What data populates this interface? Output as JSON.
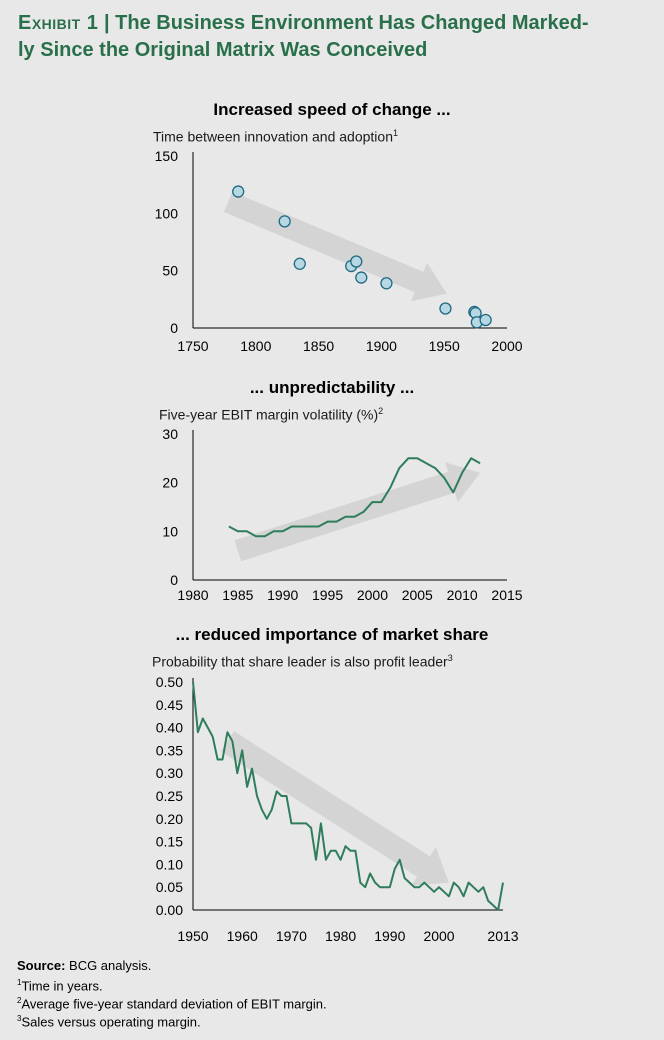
{
  "header": {
    "exhibit_label": "Exhibit 1",
    "separator": " | ",
    "title_line1": "The Business Environment Has Changed Marked-",
    "title_line2": "ly Since the Original Matrix Was Conceived"
  },
  "colors": {
    "accent": "#29704a",
    "line": "#2e7d5b",
    "marker_fill": "#b7d7e3",
    "marker_stroke": "#1f6a83",
    "arrow": "#d4d4d4",
    "background": "#e8e8e8"
  },
  "chart_data": [
    {
      "type": "scatter",
      "title": "Increased speed of change ...",
      "ylabel": "Time between innovation and adoption",
      "ylabel_note": "1",
      "xlim": [
        1750,
        2000
      ],
      "ylim": [
        0,
        150
      ],
      "xticks": [
        1750,
        1800,
        1850,
        1900,
        1950,
        2000
      ],
      "yticks": [
        0,
        50,
        100,
        150
      ],
      "points": [
        {
          "x": 1786,
          "y": 119
        },
        {
          "x": 1823,
          "y": 93
        },
        {
          "x": 1835,
          "y": 56
        },
        {
          "x": 1876,
          "y": 54
        },
        {
          "x": 1880,
          "y": 58
        },
        {
          "x": 1884,
          "y": 44
        },
        {
          "x": 1904,
          "y": 39
        },
        {
          "x": 1951,
          "y": 17
        },
        {
          "x": 1974,
          "y": 14
        },
        {
          "x": 1975,
          "y": 13
        },
        {
          "x": 1976,
          "y": 5
        },
        {
          "x": 1983,
          "y": 7
        }
      ],
      "trend_arrow": {
        "from": [
          1778,
          110
        ],
        "to": [
          1952,
          30
        ]
      }
    },
    {
      "type": "line",
      "title": "... unpredictability ...",
      "ylabel": "Five-year EBIT margin volatility (%)",
      "ylabel_note": "2",
      "xlim": [
        1980,
        2015
      ],
      "ylim": [
        0,
        30
      ],
      "xticks": [
        1980,
        1985,
        1990,
        1995,
        2000,
        2005,
        2010,
        2015
      ],
      "yticks": [
        0,
        10,
        20,
        30
      ],
      "x": [
        1984,
        1985,
        1986,
        1987,
        1988,
        1989,
        1990,
        1991,
        1992,
        1993,
        1994,
        1995,
        1996,
        1997,
        1998,
        1999,
        2000,
        2001,
        2002,
        2003,
        2004,
        2005,
        2006,
        2007,
        2008,
        2009,
        2010,
        2011,
        2012
      ],
      "values": [
        11,
        10,
        10,
        9,
        9,
        10,
        10,
        11,
        11,
        11,
        11,
        12,
        12,
        13,
        13,
        14,
        16,
        16,
        19,
        23,
        25,
        25,
        24,
        23,
        21,
        18,
        22,
        25,
        24
      ],
      "trend_arrow": {
        "from": [
          1985,
          6
        ],
        "to": [
          2012,
          22
        ]
      }
    },
    {
      "type": "line",
      "title": "... reduced importance of market share",
      "ylabel": "Probability that share leader is also profit leader",
      "ylabel_note": "3",
      "xlim": [
        1950,
        2013
      ],
      "ylim": [
        0,
        0.5
      ],
      "xticks": [
        1950,
        1960,
        1970,
        1980,
        1990,
        2000,
        2013
      ],
      "xtick_labels": [
        "1950",
        "1960",
        "1970",
        "1980",
        "1990",
        "2000",
        "2013"
      ],
      "yticks": [
        0,
        0.05,
        0.1,
        0.15,
        0.2,
        0.25,
        0.3,
        0.35,
        0.4,
        0.45,
        0.5
      ],
      "ytick_labels": [
        "0.00",
        "0.05",
        "0.10",
        "0.15",
        "0.20",
        "0.25",
        "0.30",
        "0.35",
        "0.40",
        "0.45",
        "0.50"
      ],
      "x": [
        1950,
        1951,
        1952,
        1953,
        1954,
        1955,
        1956,
        1957,
        1958,
        1959,
        1960,
        1961,
        1962,
        1963,
        1964,
        1965,
        1966,
        1967,
        1968,
        1969,
        1970,
        1971,
        1972,
        1973,
        1974,
        1975,
        1976,
        1977,
        1978,
        1979,
        1980,
        1981,
        1982,
        1983,
        1984,
        1985,
        1986,
        1987,
        1988,
        1989,
        1990,
        1991,
        1992,
        1993,
        1994,
        1995,
        1996,
        1997,
        1998,
        1999,
        2000,
        2001,
        2002,
        2003,
        2004,
        2005,
        2006,
        2007,
        2008,
        2009,
        2010,
        2011,
        2012,
        2013
      ],
      "values": [
        0.5,
        0.39,
        0.42,
        0.4,
        0.38,
        0.33,
        0.33,
        0.39,
        0.37,
        0.3,
        0.35,
        0.27,
        0.31,
        0.25,
        0.22,
        0.2,
        0.22,
        0.26,
        0.25,
        0.25,
        0.19,
        0.19,
        0.19,
        0.19,
        0.18,
        0.11,
        0.19,
        0.11,
        0.13,
        0.13,
        0.11,
        0.14,
        0.13,
        0.13,
        0.06,
        0.05,
        0.08,
        0.06,
        0.05,
        0.05,
        0.05,
        0.09,
        0.11,
        0.07,
        0.06,
        0.05,
        0.05,
        0.06,
        0.05,
        0.04,
        0.05,
        0.04,
        0.03,
        0.06,
        0.05,
        0.03,
        0.06,
        0.05,
        0.04,
        0.05,
        0.02,
        0.01,
        0.0,
        0.06
      ],
      "trend_arrow": {
        "from": [
          1957,
          0.37
        ],
        "to": [
          2002,
          0.06
        ]
      }
    }
  ],
  "footer": {
    "source_label": "Source:",
    "source_text": " BCG analysis.",
    "notes": [
      {
        "mark": "1",
        "text": "Time in years."
      },
      {
        "mark": "2",
        "text": "Average five-year standard deviation of EBIT margin."
      },
      {
        "mark": "3",
        "text": "Sales versus operating margin."
      }
    ]
  }
}
